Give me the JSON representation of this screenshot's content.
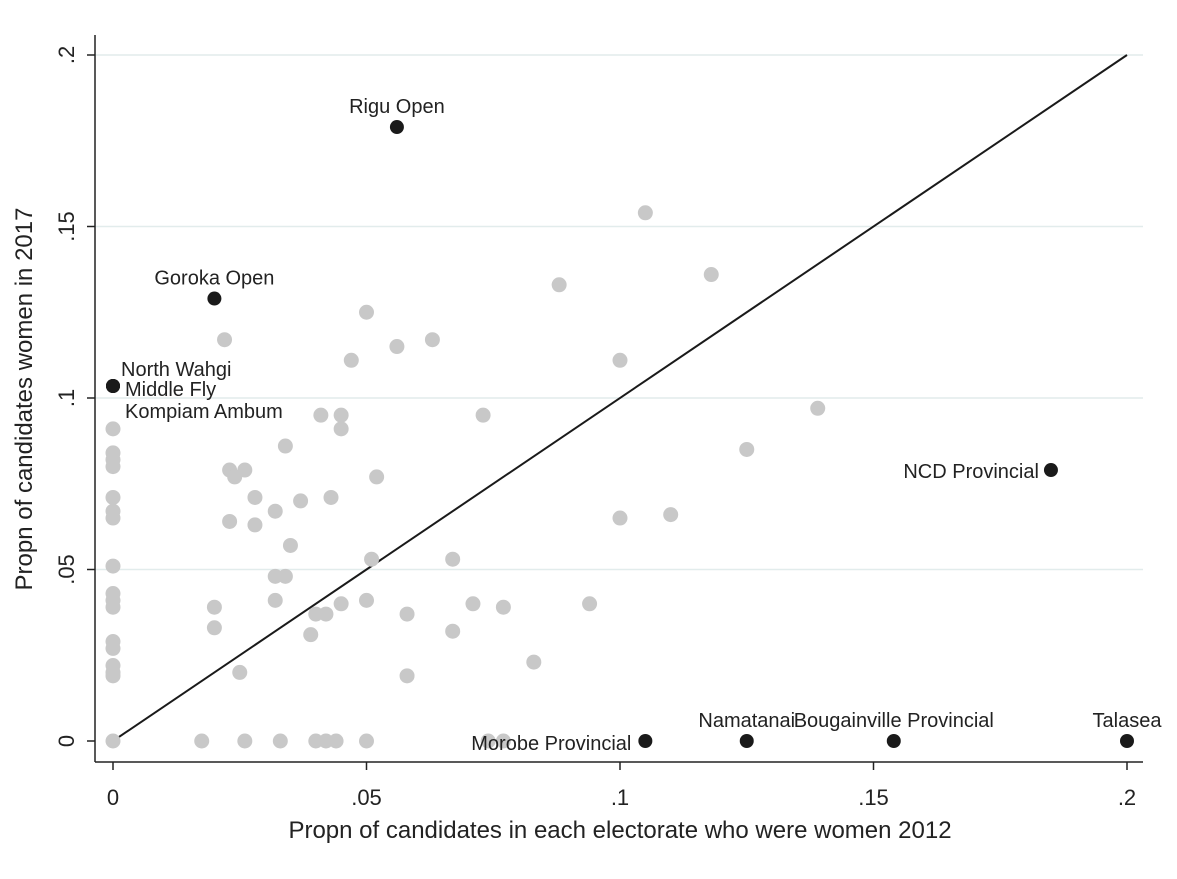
{
  "chart_data": {
    "type": "scatter",
    "xlabel": "Propn of candidates in each electorate who were women 2012",
    "ylabel": "Propn of candidates women  in 2017",
    "xlim": [
      0,
      0.2
    ],
    "ylim": [
      0,
      0.2
    ],
    "x_ticks": [
      {
        "value": 0,
        "label": "0"
      },
      {
        "value": 0.05,
        "label": ".05"
      },
      {
        "value": 0.1,
        "label": ".1"
      },
      {
        "value": 0.15,
        "label": ".15"
      },
      {
        "value": 0.2,
        "label": ".2"
      }
    ],
    "y_ticks": [
      {
        "value": 0,
        "label": "0"
      },
      {
        "value": 0.05,
        "label": ".05"
      },
      {
        "value": 0.1,
        "label": ".1"
      },
      {
        "value": 0.15,
        "label": ".15"
      },
      {
        "value": 0.2,
        "label": ".2"
      }
    ],
    "grid": "horizontal",
    "reference_line": {
      "from": [
        0,
        0
      ],
      "to": [
        0.2,
        0.2
      ]
    },
    "colors": {
      "other": "#c8c8c8",
      "labeled": "#1a1a1a",
      "grid": "#e2ecec",
      "line": "#1a1a1a"
    },
    "series": [
      {
        "points": [
          [
            0,
            0.091
          ],
          [
            0,
            0.084
          ],
          [
            0,
            0.082
          ],
          [
            0,
            0.08
          ],
          [
            0,
            0.071
          ],
          [
            0,
            0.067
          ],
          [
            0,
            0.065
          ],
          [
            0,
            0.051
          ],
          [
            0,
            0.043
          ],
          [
            0,
            0.041
          ],
          [
            0,
            0.039
          ],
          [
            0,
            0.029
          ],
          [
            0,
            0.027
          ],
          [
            0,
            0.022
          ],
          [
            0,
            0.02
          ],
          [
            0,
            0.019
          ],
          [
            0,
            0.0
          ],
          [
            0.0175,
            0
          ],
          [
            0.02,
            0.039
          ],
          [
            0.02,
            0.033
          ],
          [
            0.022,
            0.117
          ],
          [
            0.023,
            0.079
          ],
          [
            0.023,
            0.064
          ],
          [
            0.024,
            0.077
          ],
          [
            0.025,
            0.02
          ],
          [
            0.026,
            0.079
          ],
          [
            0.026,
            0
          ],
          [
            0.028,
            0.071
          ],
          [
            0.028,
            0.063
          ],
          [
            0.032,
            0.067
          ],
          [
            0.032,
            0.048
          ],
          [
            0.032,
            0.041
          ],
          [
            0.033,
            0
          ],
          [
            0.034,
            0.086
          ],
          [
            0.034,
            0.048
          ],
          [
            0.035,
            0.057
          ],
          [
            0.037,
            0.07
          ],
          [
            0.039,
            0.031
          ],
          [
            0.04,
            0.037
          ],
          [
            0.04,
            0
          ],
          [
            0.041,
            0.095
          ],
          [
            0.042,
            0.037
          ],
          [
            0.042,
            0
          ],
          [
            0.043,
            0.071
          ],
          [
            0.044,
            0
          ],
          [
            0.045,
            0.095
          ],
          [
            0.045,
            0.091
          ],
          [
            0.045,
            0.04
          ],
          [
            0.047,
            0.111
          ],
          [
            0.05,
            0.125
          ],
          [
            0.05,
            0.041
          ],
          [
            0.05,
            0
          ],
          [
            0.051,
            0.053
          ],
          [
            0.052,
            0.077
          ],
          [
            0.056,
            0.115
          ],
          [
            0.058,
            0.037
          ],
          [
            0.058,
            0.019
          ],
          [
            0.063,
            0.117
          ],
          [
            0.067,
            0.053
          ],
          [
            0.067,
            0.032
          ],
          [
            0.071,
            0.04
          ],
          [
            0.073,
            0.095
          ],
          [
            0.074,
            0
          ],
          [
            0.077,
            0.039
          ],
          [
            0.077,
            0
          ],
          [
            0.083,
            0.023
          ],
          [
            0.088,
            0.133
          ],
          [
            0.094,
            0.04
          ],
          [
            0.1,
            0.111
          ],
          [
            0.1,
            0.065
          ],
          [
            0.105,
            0.154
          ],
          [
            0.11,
            0.066
          ],
          [
            0.118,
            0.136
          ],
          [
            0.125,
            0.085
          ],
          [
            0.139,
            0.097
          ]
        ]
      },
      {
        "points": [
          {
            "x": 0.056,
            "y": 0.179,
            "label": "Rigu Open"
          },
          {
            "x": 0.02,
            "y": 0.129,
            "label": "Goroka Open"
          },
          {
            "x": 0.0,
            "y": 0.1035,
            "label": "North Wahgi"
          },
          {
            "x": 0.0,
            "y": 0.1035,
            "label": "Middle Fly"
          },
          {
            "x": 0.0,
            "y": 0.1035,
            "label": "Kompiam Ambum"
          },
          {
            "x": 0.185,
            "y": 0.079,
            "label": "NCD Provincial"
          },
          {
            "x": 0.105,
            "y": 0.0,
            "label": "Morobe Provincial"
          },
          {
            "x": 0.125,
            "y": 0.0,
            "label": "Namatanai"
          },
          {
            "x": 0.154,
            "y": 0.0,
            "label": "Bougainville Provincial"
          },
          {
            "x": 0.2,
            "y": 0.0,
            "label": "Talasea"
          }
        ]
      }
    ]
  }
}
